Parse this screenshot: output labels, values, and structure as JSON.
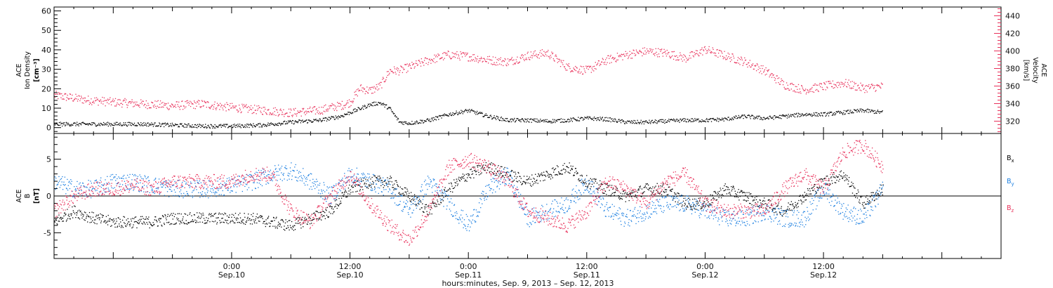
{
  "chart_data": [
    {
      "type": "scatter",
      "panel": "top",
      "left_axis_label": [
        "ACE",
        "Ion Density",
        "[cm⁻³]"
      ],
      "right_axis_label": [
        "ACE",
        "Velocity",
        "[km/s]"
      ],
      "left_ylim": [
        -3,
        62
      ],
      "right_ylim": [
        306,
        450
      ],
      "left_ticks": [
        0,
        10,
        20,
        30,
        40,
        50,
        60
      ],
      "right_ticks": [
        320,
        340,
        360,
        380,
        400,
        420,
        440
      ],
      "x_hours_range": [
        -18,
        78
      ],
      "data_end_hour": 39,
      "colors": {
        "density": "#000000",
        "velocity": "#e8305a"
      },
      "series": [
        {
          "key": "density",
          "axis": "left",
          "x": [
            -18,
            -15,
            -12,
            -9,
            -6,
            -3,
            0,
            3,
            6,
            9,
            10,
            11,
            12,
            13,
            14,
            15,
            16,
            17,
            18,
            20,
            22,
            24,
            26,
            28,
            30,
            32,
            34,
            36,
            38,
            40,
            42,
            44,
            46,
            48,
            50,
            52,
            54,
            56,
            58,
            60,
            62,
            64,
            66
          ],
          "values": [
            2,
            2,
            2,
            2,
            1.5,
            1,
            1,
            1.5,
            3,
            4,
            5,
            6,
            8,
            10,
            12,
            13,
            10,
            3,
            2.5,
            4,
            7,
            9,
            6,
            4,
            4,
            3.5,
            4,
            5,
            4.5,
            3,
            3,
            3.5,
            4,
            4,
            4.5,
            6,
            5,
            6,
            7,
            7,
            8,
            9,
            8
          ],
          "jitter": 1
        },
        {
          "key": "velocity",
          "axis": "right",
          "x": [
            -18,
            -15,
            -12,
            -9,
            -6,
            -3,
            0,
            3,
            6,
            9,
            10,
            11,
            12,
            13,
            14,
            15,
            16,
            17,
            18,
            20,
            22,
            24,
            26,
            28,
            30,
            32,
            34,
            36,
            38,
            40,
            42,
            44,
            46,
            48,
            50,
            52,
            54,
            56,
            58,
            60,
            62,
            64,
            66
          ],
          "values": [
            350,
            345,
            342,
            340,
            338,
            340,
            336,
            333,
            330,
            333,
            336,
            338,
            342,
            358,
            355,
            360,
            378,
            378,
            382,
            390,
            396,
            394,
            390,
            388,
            395,
            398,
            382,
            378,
            390,
            396,
            400,
            398,
            392,
            402,
            395,
            388,
            378,
            362,
            356,
            360,
            364,
            358,
            360
          ],
          "jitter": 5
        }
      ]
    },
    {
      "type": "scatter",
      "panel": "bottom",
      "ylabel": [
        "ACE",
        "B",
        "[nT]"
      ],
      "ylim": [
        -8.5,
        8.5
      ],
      "y_ticks": [
        -5,
        0,
        5
      ],
      "x_hours_range": [
        -18,
        78
      ],
      "x_tick_hours": [
        0,
        12,
        24,
        36,
        48,
        60
      ],
      "x_tick_labels": [
        [
          "0:00",
          "Sep.10"
        ],
        [
          "12:00",
          "Sep.10"
        ],
        [
          "0:00",
          "Sep.11"
        ],
        [
          "12:00",
          "Sep.11"
        ],
        [
          "0:00",
          "Sep.12"
        ],
        [
          "12:00",
          "Sep.12"
        ]
      ],
      "xlabel": "hours:minutes, Sep.  9, 2013 – Sep. 12, 2013",
      "legend": [
        {
          "main": "B",
          "sub": "x",
          "color": "#000000"
        },
        {
          "main": "B",
          "sub": "y",
          "color": "#1a7ee0"
        },
        {
          "main": "B",
          "sub": "z",
          "color": "#e8305a"
        }
      ],
      "series": [
        {
          "key": "Bx",
          "color": "#000000",
          "x": [
            -18,
            -16,
            -14,
            -12,
            -10,
            -8,
            -6,
            -4,
            -2,
            0,
            2,
            4,
            6,
            8,
            10,
            12,
            14,
            16,
            18,
            20,
            22,
            24,
            26,
            28,
            30,
            32,
            34,
            36,
            38,
            40,
            42,
            44,
            46,
            48,
            50,
            52,
            54,
            56,
            58,
            60,
            62,
            64,
            66
          ],
          "values": [
            -3.5,
            -2,
            -3,
            -3.5,
            -3.5,
            -3.5,
            -3,
            -3,
            -3,
            -3,
            -3,
            -3.5,
            -4,
            -3,
            -2,
            1,
            2,
            2,
            0,
            -2,
            1,
            3,
            4,
            3,
            2,
            3,
            4,
            2,
            1,
            0,
            1,
            1,
            -1,
            -1,
            1,
            0,
            -1,
            -2,
            0,
            2,
            3,
            -1,
            1
          ],
          "jitter": 0.8
        },
        {
          "key": "By",
          "color": "#1a7ee0",
          "x": [
            -18,
            -16,
            -14,
            -12,
            -10,
            -8,
            -6,
            -4,
            -2,
            0,
            2,
            4,
            6,
            8,
            10,
            12,
            14,
            16,
            18,
            20,
            22,
            24,
            26,
            28,
            30,
            32,
            34,
            36,
            38,
            40,
            42,
            44,
            46,
            48,
            50,
            52,
            54,
            56,
            58,
            60,
            62,
            64,
            66
          ],
          "values": [
            2,
            1,
            1,
            2,
            2,
            1.5,
            1,
            1,
            1,
            1.5,
            2,
            3,
            3.5,
            2,
            0,
            3,
            2,
            1,
            -2,
            2,
            -1,
            -4,
            1,
            3,
            -3,
            -2,
            -1,
            2,
            -2,
            -3,
            -2,
            -1,
            -1,
            -2,
            -3,
            -3,
            -2,
            -3,
            -3,
            1,
            -2,
            -3,
            1
          ],
          "jitter": 1.2
        },
        {
          "key": "Bz",
          "color": "#e8305a",
          "x": [
            -18,
            -16,
            -14,
            -12,
            -10,
            -8,
            -6,
            -4,
            -2,
            0,
            2,
            4,
            6,
            8,
            10,
            12,
            14,
            16,
            18,
            20,
            22,
            24,
            26,
            28,
            30,
            32,
            34,
            36,
            38,
            40,
            42,
            44,
            46,
            48,
            50,
            52,
            54,
            56,
            58,
            60,
            62,
            64,
            66
          ],
          "values": [
            -2,
            0,
            1,
            1,
            1.5,
            1,
            2,
            2,
            2,
            2,
            3,
            3,
            -2,
            -3.5,
            0,
            3,
            -1,
            -4,
            -6,
            -2,
            4,
            5,
            4,
            2,
            -2,
            -3,
            -4,
            -2,
            2,
            1,
            -1,
            2,
            3,
            -1,
            -2,
            -2,
            -2,
            1,
            3,
            1,
            6,
            7,
            4
          ],
          "jitter": 1.0
        }
      ]
    }
  ]
}
